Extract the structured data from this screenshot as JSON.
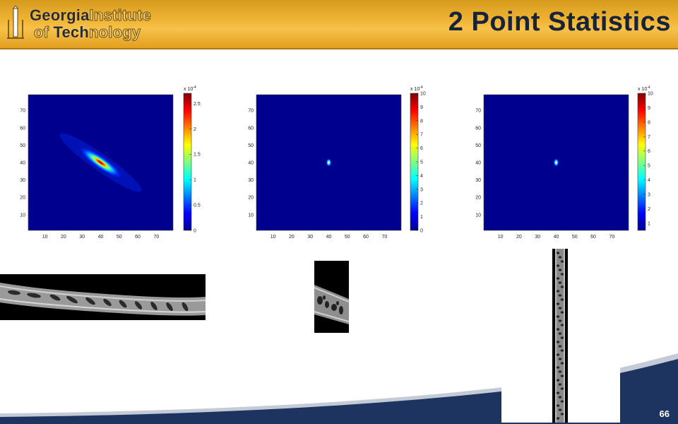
{
  "slide": {
    "title": "2 Point Statistics",
    "page_number": "66",
    "logo": {
      "line1_dark": "Georgia",
      "line1_light": "Institute",
      "line2_light_a": "of ",
      "line2_dark": "Tech",
      "line2_light_b": "nology"
    }
  },
  "colors": {
    "header_gold": "#f2b636",
    "title_navy": "#17233b",
    "plot_background": "#00008f",
    "footer_navy": "#1d3461"
  },
  "chart_data": [
    {
      "type": "heatmap",
      "x_ticks": [
        "10",
        "20",
        "30",
        "40",
        "50",
        "60",
        "70"
      ],
      "y_ticks": [
        "10",
        "20",
        "30",
        "40",
        "50",
        "60",
        "70"
      ],
      "xlim": [
        1,
        79
      ],
      "ylim": [
        1,
        79
      ],
      "colorbar": {
        "multiplier": "x 10",
        "exponent": "-4",
        "ticks": [
          "0",
          "0.5",
          "1",
          "1.5",
          "2",
          "2.5"
        ],
        "min": 0,
        "max": 2.7
      },
      "peak": {
        "x": 40,
        "y": 40,
        "value": 2.6
      },
      "shape": "elongated-diagonal"
    },
    {
      "type": "heatmap",
      "x_ticks": [
        "10",
        "20",
        "30",
        "40",
        "50",
        "60",
        "70"
      ],
      "y_ticks": [
        "10",
        "20",
        "30",
        "40",
        "50",
        "60",
        "70"
      ],
      "xlim": [
        1,
        79
      ],
      "ylim": [
        1,
        79
      ],
      "colorbar": {
        "multiplier": "x 10",
        "exponent": "-4",
        "ticks": [
          "0",
          "1",
          "2",
          "3",
          "4",
          "5",
          "6",
          "7",
          "8",
          "9",
          "10"
        ],
        "min": 0,
        "max": 10
      },
      "peak": {
        "x": 40,
        "y": 40,
        "value": 10
      },
      "shape": "point"
    },
    {
      "type": "heatmap",
      "x_ticks": [
        "10",
        "20",
        "30",
        "40",
        "50",
        "60",
        "70"
      ],
      "y_ticks": [
        "10",
        "20",
        "30",
        "40",
        "50",
        "60",
        "70"
      ],
      "xlim": [
        1,
        79
      ],
      "ylim": [
        1,
        79
      ],
      "colorbar": {
        "multiplier": "x 10",
        "exponent": "-4",
        "ticks": [
          "1",
          "2",
          "3",
          "4",
          "5",
          "6",
          "7",
          "8",
          "9",
          "10"
        ],
        "min": 0.5,
        "max": 10
      },
      "peak": {
        "x": 40,
        "y": 40,
        "value": 10
      },
      "shape": "point"
    }
  ]
}
